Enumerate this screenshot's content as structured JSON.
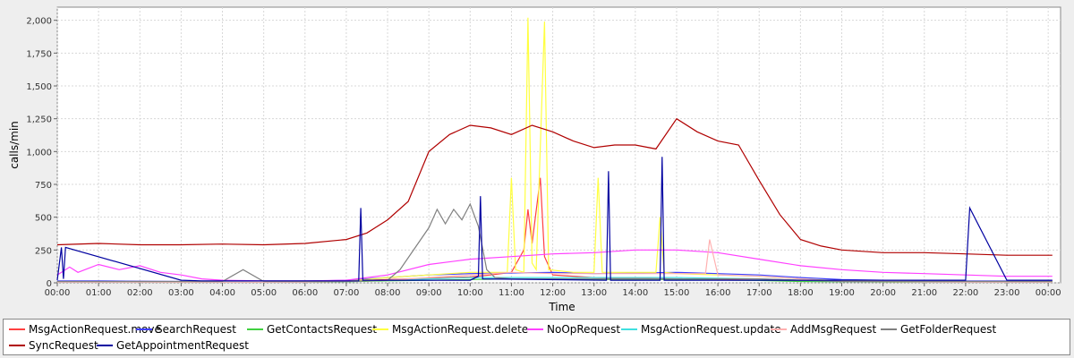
{
  "chart_data": {
    "type": "line",
    "xlabel": "Time",
    "ylabel": "calls/min",
    "ylim": [
      0,
      2100
    ],
    "yticks": [
      0,
      250,
      500,
      750,
      1000,
      1250,
      1500,
      1750,
      2000
    ],
    "ytick_labels": [
      "0",
      "250",
      "500",
      "750",
      "1,000",
      "1,250",
      "1,500",
      "1,750",
      "2,000"
    ],
    "xlim": [
      0,
      24.3
    ],
    "xtick_labels": [
      "00:00",
      "01:00",
      "02:00",
      "03:00",
      "04:00",
      "05:00",
      "06:00",
      "07:00",
      "08:00",
      "09:00",
      "10:00",
      "11:00",
      "12:00",
      "13:00",
      "14:00",
      "15:00",
      "16:00",
      "17:00",
      "18:00",
      "19:00",
      "20:00",
      "21:00",
      "22:00",
      "23:00",
      "00:00"
    ],
    "grid": true,
    "legend_position": "bottom",
    "series": [
      {
        "name": "MsgActionRequest.move",
        "color": "#ff4040",
        "x": [
          0,
          1,
          2,
          3,
          4,
          5,
          6,
          7,
          8,
          9,
          10,
          10.5,
          11,
          11.3,
          11.4,
          11.5,
          11.7,
          11.8,
          12,
          13,
          14,
          15,
          16,
          17,
          18,
          19,
          20,
          21,
          22,
          23,
          24.1
        ],
        "y": [
          10,
          10,
          10,
          8,
          8,
          8,
          10,
          15,
          25,
          35,
          45,
          60,
          80,
          250,
          560,
          300,
          800,
          200,
          60,
          40,
          35,
          30,
          25,
          20,
          15,
          10,
          10,
          10,
          10,
          10,
          10
        ]
      },
      {
        "name": "SearchRequest",
        "color": "#4040ff",
        "x": [
          0,
          1,
          2,
          3,
          4,
          5,
          6,
          7,
          8,
          9,
          10,
          11,
          12,
          13,
          14,
          15,
          16,
          17,
          18,
          19,
          20,
          21,
          22,
          23,
          24.1
        ],
        "y": [
          15,
          15,
          12,
          10,
          10,
          10,
          12,
          20,
          40,
          60,
          70,
          75,
          80,
          70,
          75,
          80,
          70,
          60,
          40,
          25,
          20,
          18,
          15,
          15,
          15
        ]
      },
      {
        "name": "GetContactsRequest",
        "color": "#40d040",
        "x": [
          0,
          1,
          2,
          3,
          4,
          5,
          6,
          7,
          8,
          9,
          10,
          11,
          12,
          13,
          14,
          15,
          16,
          17,
          18,
          19,
          20,
          21,
          22,
          23,
          24.1
        ],
        "y": [
          5,
          5,
          5,
          5,
          5,
          5,
          5,
          8,
          15,
          20,
          25,
          30,
          30,
          25,
          25,
          25,
          22,
          18,
          10,
          8,
          6,
          5,
          5,
          5,
          5
        ]
      },
      {
        "name": "MsgActionRequest.delete",
        "color": "#ffff40",
        "x": [
          0,
          1,
          2,
          3,
          4,
          5,
          6,
          7,
          8,
          9,
          10,
          10.9,
          11.0,
          11.1,
          11.3,
          11.4,
          11.5,
          11.6,
          11.8,
          11.9,
          12.5,
          13.0,
          13.1,
          13.2,
          14.0,
          14.5,
          14.6,
          14.7,
          15,
          16,
          17,
          18,
          19,
          20,
          21,
          22,
          23,
          24.1
        ],
        "y": [
          8,
          8,
          8,
          5,
          5,
          5,
          8,
          12,
          40,
          60,
          80,
          80,
          800,
          100,
          80,
          2020,
          150,
          100,
          1990,
          100,
          80,
          80,
          800,
          80,
          80,
          80,
          500,
          80,
          70,
          60,
          50,
          30,
          15,
          10,
          10,
          10,
          10,
          10
        ]
      },
      {
        "name": "NoOpRequest",
        "color": "#ff40ff",
        "x": [
          0,
          0.3,
          0.5,
          1,
          1.5,
          2,
          2.5,
          3,
          3.5,
          4,
          5,
          6,
          7,
          8,
          9,
          10,
          11,
          12,
          13,
          14,
          15,
          16,
          17,
          18,
          19,
          20,
          21,
          22,
          23,
          24.1
        ],
        "y": [
          60,
          120,
          80,
          140,
          100,
          130,
          80,
          60,
          30,
          20,
          15,
          15,
          20,
          60,
          140,
          180,
          200,
          220,
          230,
          250,
          250,
          230,
          180,
          130,
          100,
          80,
          70,
          60,
          50,
          50
        ]
      },
      {
        "name": "MsgActionRequest.update",
        "color": "#40e0e0",
        "x": [
          0,
          1,
          2,
          3,
          4,
          5,
          6,
          7,
          8,
          9,
          10,
          11,
          12,
          13,
          14,
          15,
          16,
          17,
          18,
          19,
          20,
          21,
          22,
          23,
          24.1
        ],
        "y": [
          5,
          5,
          5,
          5,
          5,
          5,
          5,
          10,
          20,
          30,
          40,
          40,
          40,
          40,
          40,
          40,
          35,
          30,
          20,
          10,
          8,
          6,
          5,
          5,
          5
        ]
      },
      {
        "name": "AddMsgRequest",
        "color": "#ffb0b0",
        "x": [
          0,
          1,
          2,
          3,
          4,
          5,
          6,
          7,
          8,
          9,
          10,
          11,
          12,
          13,
          14,
          15,
          15.7,
          15.8,
          16,
          17,
          18,
          19,
          20,
          21,
          22,
          23,
          24.1
        ],
        "y": [
          5,
          5,
          5,
          5,
          5,
          5,
          5,
          10,
          20,
          40,
          60,
          80,
          70,
          70,
          70,
          70,
          70,
          330,
          60,
          50,
          30,
          10,
          8,
          6,
          5,
          5,
          5
        ]
      },
      {
        "name": "GetFolderRequest",
        "color": "#808080",
        "x": [
          0,
          1,
          2,
          3,
          4,
          4.5,
          5,
          6,
          7,
          8,
          8.3,
          9,
          9.2,
          9.4,
          9.6,
          9.8,
          10,
          10.2,
          10.4,
          10.6,
          11,
          12,
          13,
          14,
          15,
          16,
          17,
          18,
          19,
          20,
          21,
          22,
          23,
          24.1
        ],
        "y": [
          10,
          10,
          10,
          10,
          10,
          100,
          10,
          10,
          10,
          20,
          100,
          420,
          560,
          450,
          560,
          480,
          600,
          430,
          100,
          40,
          30,
          30,
          30,
          30,
          30,
          30,
          30,
          20,
          10,
          10,
          10,
          10,
          10,
          10
        ]
      },
      {
        "name": "SyncRequest",
        "color": "#b00000",
        "x": [
          0,
          1,
          2,
          3,
          4,
          5,
          6,
          7,
          7.5,
          8,
          8.5,
          9,
          9.5,
          10,
          10.5,
          11,
          11.5,
          12,
          12.5,
          13,
          13.5,
          14,
          14.5,
          15,
          15.5,
          16,
          16.5,
          17,
          17.5,
          18,
          18.5,
          19,
          20,
          21,
          22,
          23,
          24.1
        ],
        "y": [
          290,
          300,
          290,
          290,
          295,
          290,
          300,
          330,
          380,
          480,
          620,
          1000,
          1130,
          1200,
          1180,
          1130,
          1200,
          1150,
          1080,
          1030,
          1050,
          1050,
          1020,
          1250,
          1150,
          1080,
          1050,
          780,
          520,
          330,
          280,
          250,
          230,
          230,
          220,
          210,
          210
        ]
      },
      {
        "name": "GetAppointmentRequest",
        "color": "#0000a0",
        "x": [
          0,
          0.1,
          0.15,
          0.2,
          3,
          3.5,
          4,
          7.3,
          7.35,
          7.4,
          7.5,
          10,
          10.2,
          10.25,
          10.3,
          13.3,
          13.35,
          13.4,
          14.6,
          14.65,
          14.7,
          22,
          22.1,
          23,
          24.1
        ],
        "y": [
          20,
          270,
          30,
          270,
          20,
          15,
          15,
          15,
          570,
          20,
          20,
          20,
          50,
          660,
          30,
          20,
          850,
          20,
          20,
          960,
          20,
          20,
          570,
          20,
          20
        ]
      }
    ]
  }
}
